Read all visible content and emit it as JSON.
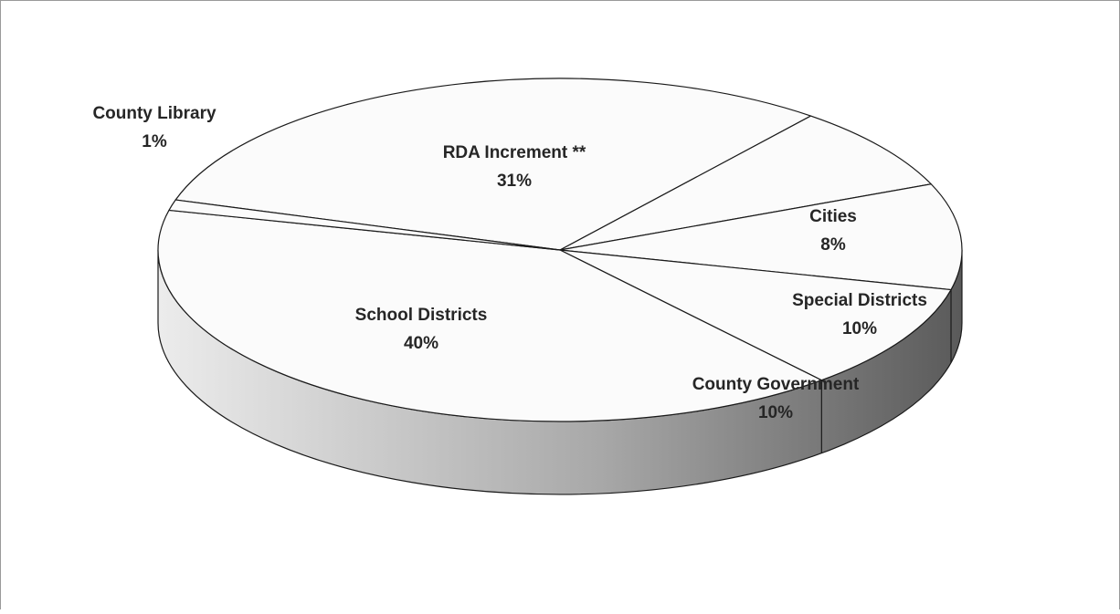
{
  "chart_data": {
    "type": "pie",
    "style": "3d",
    "title": "",
    "legend": "none",
    "slices": [
      {
        "label": "RDA Increment **",
        "value": 31,
        "value_label": "31%"
      },
      {
        "label": "Cities",
        "value": 8,
        "value_label": "8%"
      },
      {
        "label": "Special Districts",
        "value": 10,
        "value_label": "10%"
      },
      {
        "label": "County Government",
        "value": 10,
        "value_label": "10%"
      },
      {
        "label": "School Districts",
        "value": 40,
        "value_label": "40%"
      },
      {
        "label": "County Library",
        "value": 1,
        "value_label": "1%"
      }
    ],
    "colors": {
      "top": "#fbfbfb",
      "outline": "#1a1a1a",
      "side_light": "#ececec",
      "side_dark": "#5a5a5a"
    }
  }
}
